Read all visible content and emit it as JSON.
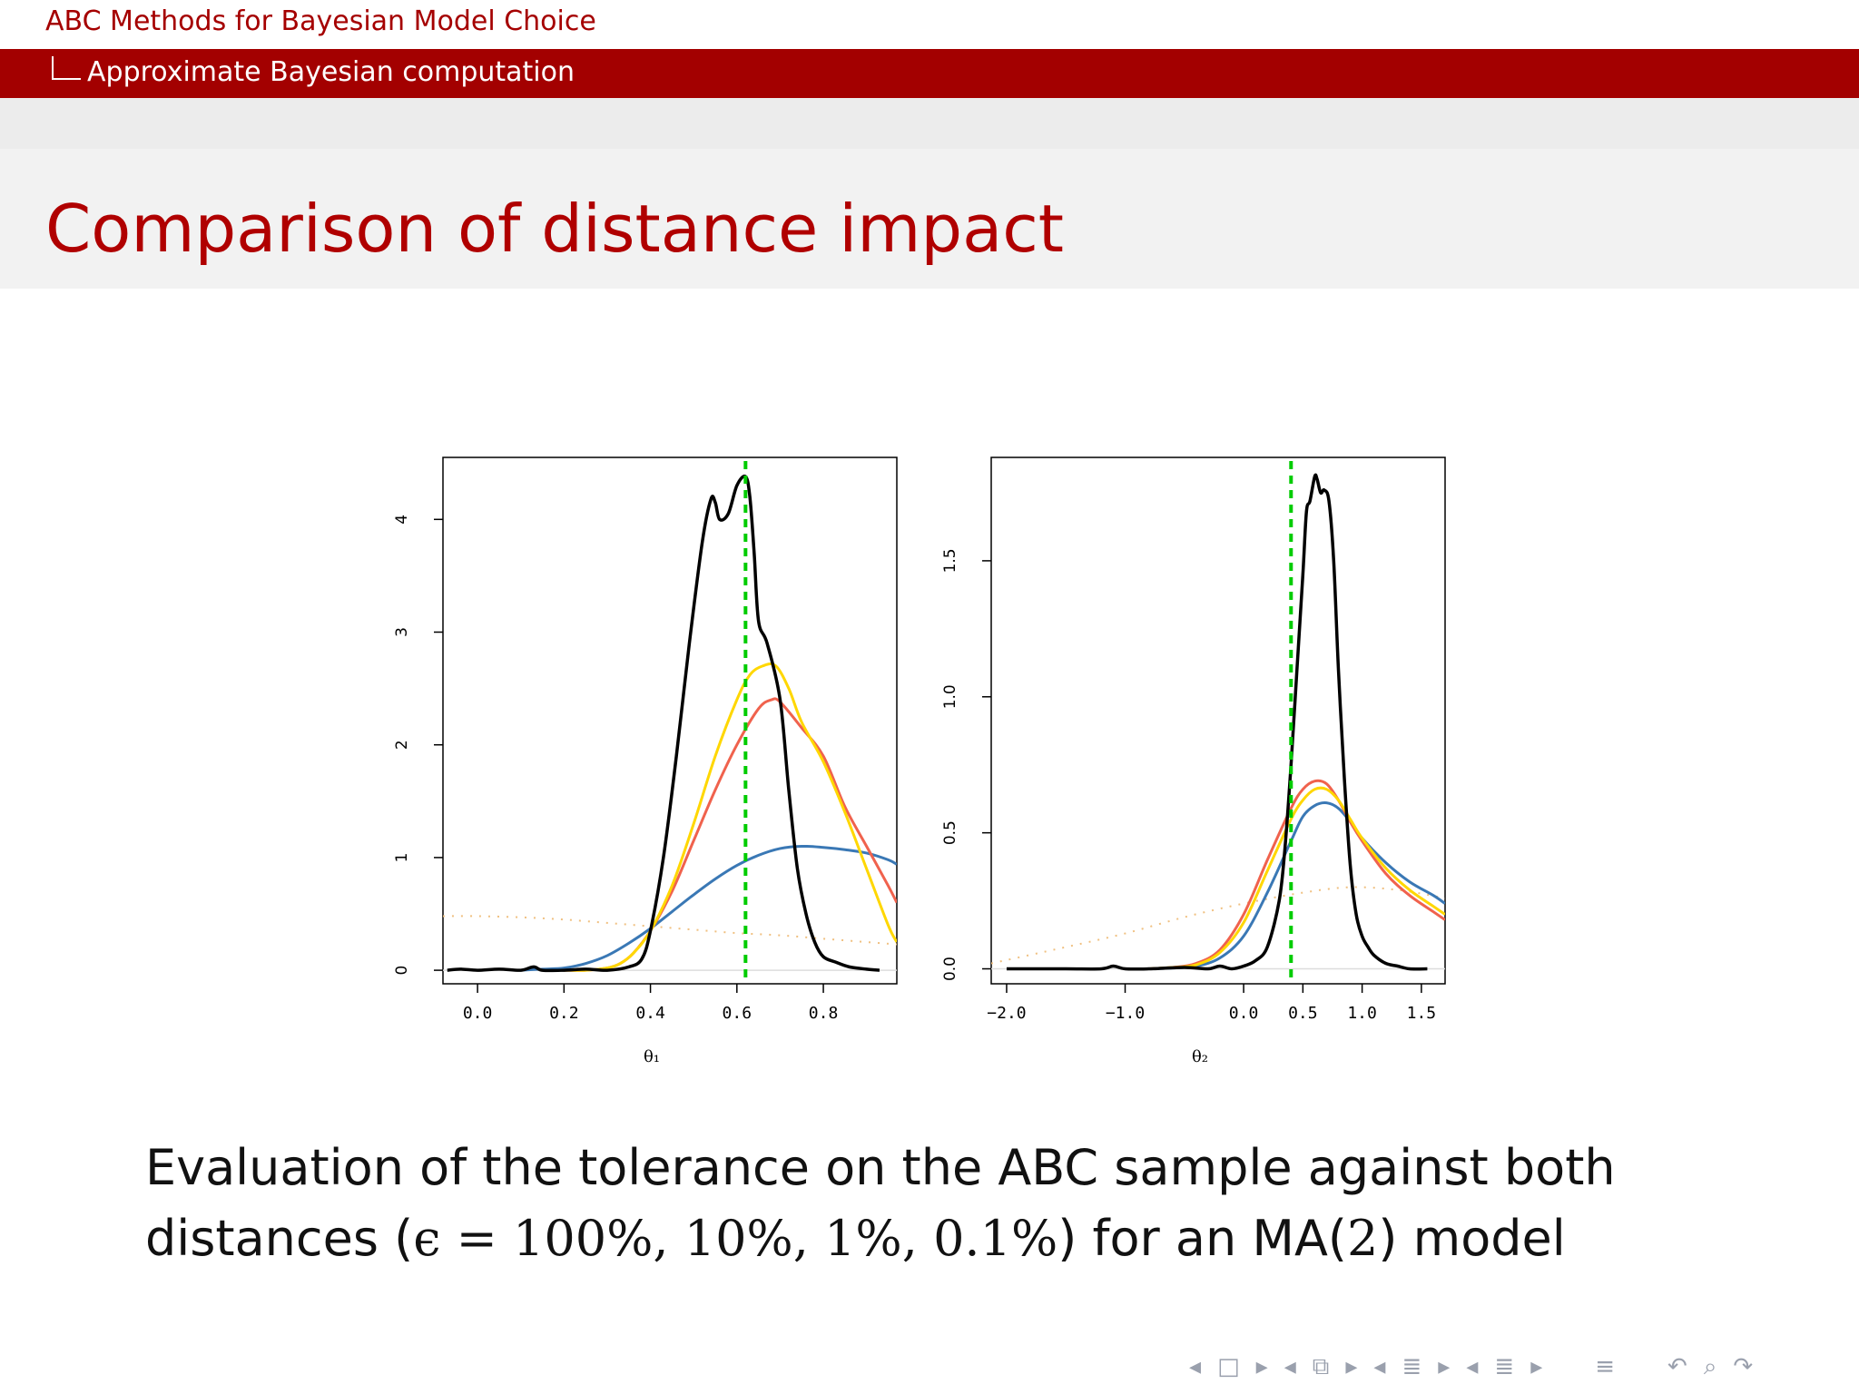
{
  "header": {
    "presentation_title": "ABC Methods for Bayesian Model Choice",
    "section": "Approximate Bayesian computation"
  },
  "slide": {
    "title": "Comparison of distance impact",
    "caption_line1": "Evaluation of the tolerance on the ABC sample against both",
    "caption_line2_pre": "distances (",
    "caption_line2_math": "ϵ = 100%, 10%, 1%, 0.1%",
    "caption_line2_post": ") for an MA(",
    "caption_line2_num": "2",
    "caption_line2_end": ") model"
  },
  "colors": {
    "accent": "#a30000",
    "black_curve": "#000000",
    "yellow_curve": "#ffd700",
    "red_curve": "#f0624d",
    "blue_curve": "#3a78b5",
    "dotted_curve": "#f0c080",
    "true_value_line": "#00cc00"
  },
  "nav_icons": [
    "nav-left-arrow-icon",
    "frame-icon",
    "nav-right-arrow-icon",
    "nav-left-arrow-icon",
    "subsection-icon",
    "nav-right-arrow-icon",
    "nav-left-arrow-icon",
    "section-icon",
    "nav-right-arrow-icon",
    "nav-left-arrow-icon",
    "document-icon",
    "nav-right-arrow-icon",
    "align-icon",
    "back-icon",
    "search-icon",
    "forward-icon"
  ],
  "chart_data": [
    {
      "type": "line",
      "xlabel": "θ₁",
      "ylabel": "",
      "xlim": [
        -0.08,
        0.97
      ],
      "ylim": [
        -0.12,
        4.55
      ],
      "xticks": [
        "0.0",
        "0.2",
        "0.4",
        "0.6",
        "0.8"
      ],
      "yticks": [
        "0",
        "1",
        "2",
        "3",
        "4"
      ],
      "vline": 0.62,
      "series": [
        {
          "color": "black",
          "x": [
            -0.07,
            -0.04,
            0.0,
            0.05,
            0.1,
            0.13,
            0.15,
            0.2,
            0.25,
            0.3,
            0.35,
            0.38,
            0.4,
            0.43,
            0.46,
            0.49,
            0.52,
            0.54,
            0.55,
            0.56,
            0.58,
            0.6,
            0.62,
            0.63,
            0.64,
            0.65,
            0.67,
            0.7,
            0.72,
            0.74,
            0.76,
            0.78,
            0.8,
            0.83,
            0.86,
            0.9,
            0.93
          ],
          "y": [
            0.0,
            0.01,
            0.0,
            0.01,
            0.0,
            0.03,
            0.0,
            0.0,
            0.01,
            0.0,
            0.03,
            0.1,
            0.35,
            1.0,
            1.9,
            2.9,
            3.8,
            4.18,
            4.15,
            4.0,
            4.05,
            4.3,
            4.38,
            4.2,
            3.7,
            3.1,
            2.9,
            2.4,
            1.6,
            0.9,
            0.5,
            0.25,
            0.12,
            0.07,
            0.03,
            0.01,
            0.0
          ]
        },
        {
          "color": "yellow",
          "x": [
            0.2,
            0.25,
            0.3,
            0.33,
            0.36,
            0.4,
            0.45,
            0.5,
            0.55,
            0.6,
            0.63,
            0.66,
            0.69,
            0.72,
            0.75,
            0.8,
            0.85,
            0.9,
            0.95,
            0.97
          ],
          "y": [
            0.0,
            0.0,
            0.02,
            0.06,
            0.15,
            0.35,
            0.75,
            1.3,
            1.9,
            2.4,
            2.62,
            2.7,
            2.7,
            2.5,
            2.2,
            1.85,
            1.4,
            0.9,
            0.4,
            0.25
          ]
        },
        {
          "color": "red",
          "x": [
            0.2,
            0.25,
            0.3,
            0.33,
            0.36,
            0.4,
            0.45,
            0.5,
            0.55,
            0.6,
            0.65,
            0.68,
            0.7,
            0.75,
            0.8,
            0.85,
            0.9,
            0.95,
            0.97
          ],
          "y": [
            0.0,
            0.0,
            0.02,
            0.06,
            0.15,
            0.35,
            0.7,
            1.15,
            1.6,
            2.0,
            2.32,
            2.4,
            2.38,
            2.15,
            1.9,
            1.45,
            1.1,
            0.75,
            0.6
          ]
        },
        {
          "color": "blue",
          "x": [
            0.1,
            0.15,
            0.2,
            0.25,
            0.3,
            0.35,
            0.4,
            0.45,
            0.5,
            0.55,
            0.6,
            0.65,
            0.7,
            0.75,
            0.8,
            0.85,
            0.9,
            0.95,
            0.97
          ],
          "y": [
            0.0,
            0.01,
            0.02,
            0.06,
            0.13,
            0.24,
            0.37,
            0.52,
            0.67,
            0.81,
            0.93,
            1.02,
            1.08,
            1.1,
            1.09,
            1.07,
            1.04,
            0.98,
            0.94
          ]
        },
        {
          "color": "dotted",
          "x": [
            -0.08,
            0.0,
            0.1,
            0.2,
            0.3,
            0.4,
            0.5,
            0.6,
            0.7,
            0.8,
            0.9,
            0.97
          ],
          "y": [
            0.48,
            0.48,
            0.47,
            0.45,
            0.42,
            0.39,
            0.36,
            0.33,
            0.31,
            0.28,
            0.25,
            0.23
          ]
        }
      ]
    },
    {
      "type": "line",
      "xlabel": "θ₂",
      "ylabel": "",
      "xlim": [
        -2.13,
        1.7
      ],
      "ylim": [
        -0.055,
        1.88
      ],
      "xticks": [
        "−2.0",
        "−1.0",
        "0.0",
        "0.5",
        "1.0",
        "1.5"
      ],
      "xtick_values": [
        -2.0,
        -1.0,
        0.0,
        0.5,
        1.0,
        1.5
      ],
      "yticks": [
        "0.0",
        "0.5",
        "1.0",
        "1.5"
      ],
      "vline": 0.4,
      "series": [
        {
          "color": "black",
          "x": [
            -2.0,
            -1.5,
            -1.2,
            -1.1,
            -1.0,
            -0.8,
            -0.5,
            -0.3,
            -0.2,
            -0.1,
            0.0,
            0.1,
            0.2,
            0.3,
            0.35,
            0.4,
            0.45,
            0.5,
            0.53,
            0.56,
            0.6,
            0.62,
            0.65,
            0.68,
            0.72,
            0.76,
            0.8,
            0.85,
            0.9,
            0.95,
            1.0,
            1.05,
            1.1,
            1.2,
            1.3,
            1.4,
            1.55
          ],
          "y": [
            0.0,
            0.0,
            0.0,
            0.01,
            0.0,
            0.0,
            0.005,
            0.0,
            0.01,
            0.0,
            0.01,
            0.03,
            0.08,
            0.25,
            0.45,
            0.75,
            1.1,
            1.45,
            1.68,
            1.72,
            1.81,
            1.8,
            1.75,
            1.76,
            1.72,
            1.5,
            1.1,
            0.7,
            0.38,
            0.2,
            0.12,
            0.08,
            0.05,
            0.02,
            0.01,
            0.0,
            0.0
          ]
        },
        {
          "color": "red",
          "x": [
            -0.8,
            -0.6,
            -0.4,
            -0.2,
            0.0,
            0.2,
            0.4,
            0.5,
            0.6,
            0.7,
            0.8,
            0.9,
            1.0,
            1.2,
            1.4,
            1.6,
            1.7
          ],
          "y": [
            0.0,
            0.005,
            0.02,
            0.07,
            0.2,
            0.4,
            0.59,
            0.66,
            0.69,
            0.68,
            0.62,
            0.54,
            0.47,
            0.35,
            0.27,
            0.21,
            0.18
          ]
        },
        {
          "color": "yellow",
          "x": [
            -0.8,
            -0.6,
            -0.4,
            -0.2,
            0.0,
            0.2,
            0.4,
            0.5,
            0.6,
            0.7,
            0.8,
            0.9,
            1.0,
            1.2,
            1.4,
            1.6,
            1.7
          ],
          "y": [
            0.0,
            0.005,
            0.015,
            0.06,
            0.17,
            0.36,
            0.55,
            0.62,
            0.66,
            0.66,
            0.62,
            0.55,
            0.48,
            0.37,
            0.29,
            0.23,
            0.2
          ]
        },
        {
          "color": "blue",
          "x": [
            -0.8,
            -0.6,
            -0.4,
            -0.2,
            0.0,
            0.2,
            0.4,
            0.5,
            0.6,
            0.7,
            0.8,
            0.9,
            1.0,
            1.2,
            1.4,
            1.6,
            1.7
          ],
          "y": [
            0.0,
            0.003,
            0.01,
            0.04,
            0.12,
            0.28,
            0.47,
            0.56,
            0.6,
            0.61,
            0.59,
            0.54,
            0.48,
            0.39,
            0.32,
            0.27,
            0.24
          ]
        },
        {
          "color": "dotted",
          "x": [
            -2.13,
            -1.5,
            -1.0,
            -0.5,
            0.0,
            0.5,
            0.9,
            1.3,
            1.7
          ],
          "y": [
            0.02,
            0.08,
            0.13,
            0.19,
            0.24,
            0.28,
            0.3,
            0.29,
            0.26
          ]
        }
      ]
    }
  ]
}
